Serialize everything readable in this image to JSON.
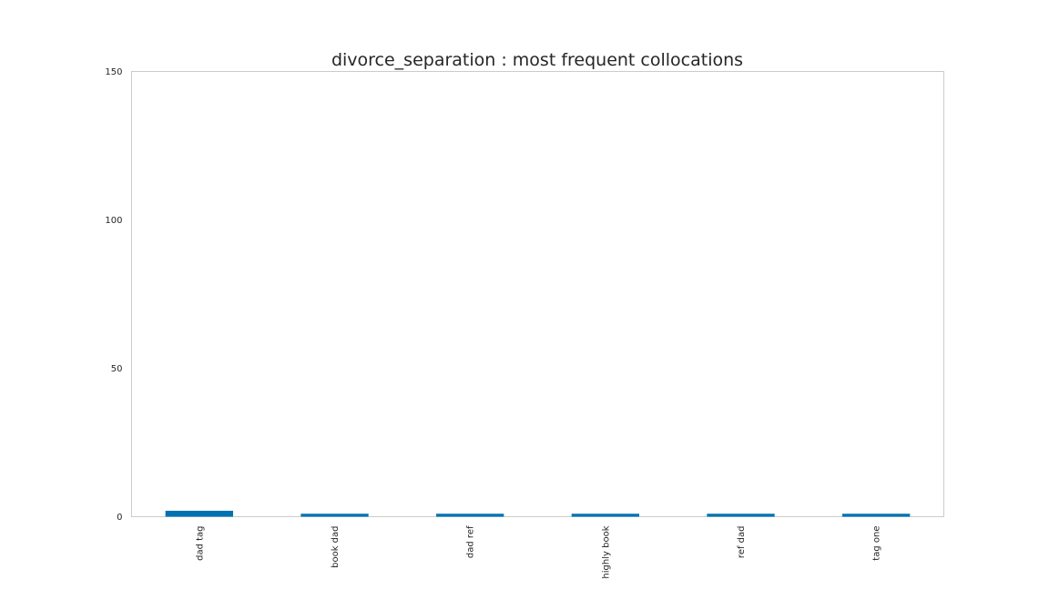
{
  "chart_data": {
    "type": "bar",
    "title": "divorce_separation : most frequent collocations",
    "xlabel": "",
    "ylabel": "",
    "categories": [
      "dad tag",
      "book dad",
      "dad ref",
      "highly book",
      "ref dad",
      "tag one"
    ],
    "values": [
      2,
      1,
      1,
      1,
      1,
      1
    ],
    "ylim": [
      0,
      150
    ],
    "yticks": [
      0,
      50,
      100,
      150
    ],
    "grid": false,
    "bar_color": "#0072b2",
    "frame_color": "#cccccc"
  }
}
